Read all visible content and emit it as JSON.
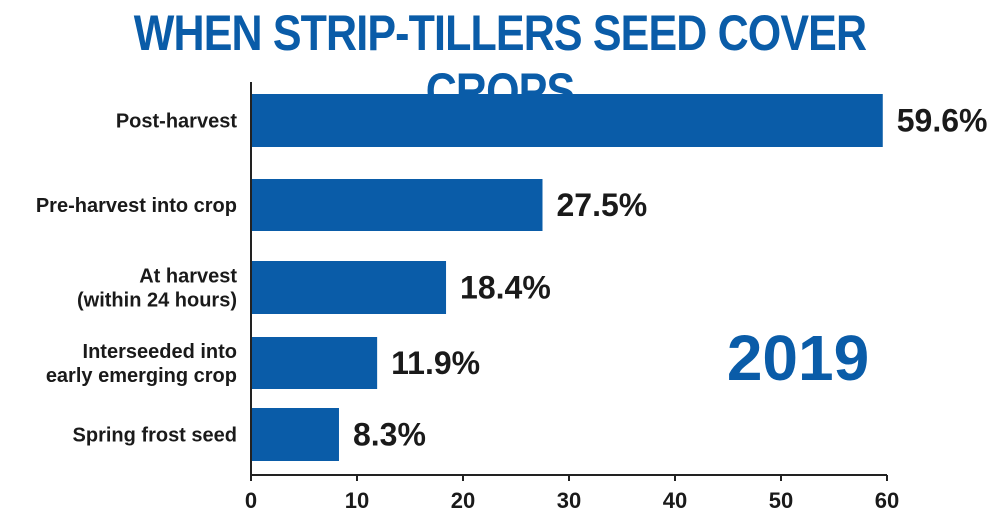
{
  "title": "WHEN STRIP-TILLERS SEED COVER CROPS",
  "annotation": "2019",
  "colors": {
    "bar": "#0a5ca8",
    "title": "#0a5ca8",
    "axis": "#222222"
  },
  "chart_data": {
    "type": "bar",
    "orientation": "horizontal",
    "title": "WHEN STRIP-TILLERS SEED COVER CROPS",
    "categories": [
      [
        "Post-harvest"
      ],
      [
        "Pre-harvest into crop"
      ],
      [
        "At harvest",
        "(within 24 hours)"
      ],
      [
        "Interseeded into",
        "early emerging crop"
      ],
      [
        "Spring frost seed"
      ]
    ],
    "values": [
      59.6,
      27.5,
      18.4,
      11.9,
      8.3
    ],
    "value_labels": [
      "59.6%",
      "27.5%",
      "18.4%",
      "11.9%",
      "8.3%"
    ],
    "xlim": [
      0,
      60
    ],
    "xticks": [
      0,
      10,
      20,
      30,
      40,
      50,
      60
    ],
    "annotation": "2019",
    "grid": false
  }
}
